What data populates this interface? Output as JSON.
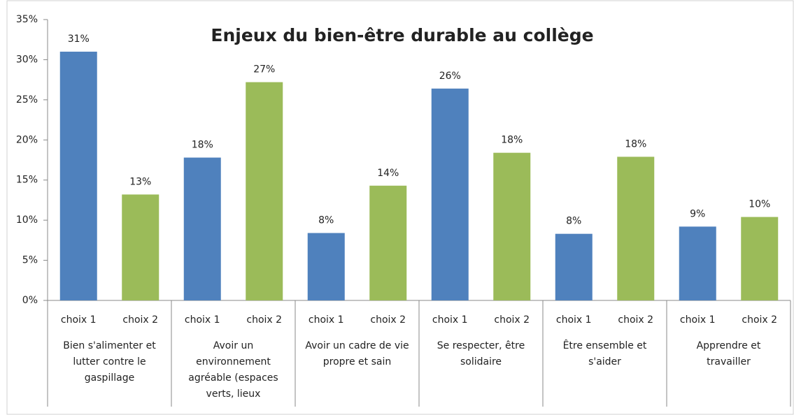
{
  "chart_data": {
    "type": "bar",
    "title": "Enjeux du bien-être durable au collège",
    "categories": [
      "Bien s'alimenter et lutter contre le gaspillage",
      "Avoir un environnement agréable (espaces verts, lieux",
      "Avoir un cadre de vie propre et sain",
      "Se respecter, être solidaire",
      "Être ensemble et s'aider",
      "Apprendre et travailler"
    ],
    "series": [
      {
        "name": "choix 1",
        "color": "#4f81bd",
        "values": [
          31,
          17.8,
          8.4,
          26.4,
          8.3,
          9.2
        ],
        "value_labels": [
          "31%",
          "18%",
          "8%",
          "26%",
          "8%",
          "9%"
        ]
      },
      {
        "name": "choix 2",
        "color": "#9bbb59",
        "values": [
          13.2,
          27.2,
          14.3,
          18.4,
          17.9,
          10.4
        ],
        "value_labels": [
          "13%",
          "27%",
          "14%",
          "18%",
          "18%",
          "10%"
        ]
      }
    ],
    "ylim": [
      0,
      35
    ],
    "yticks": [
      {
        "value": 0,
        "label": "0%"
      },
      {
        "value": 5,
        "label": "5%"
      },
      {
        "value": 10,
        "label": "10%"
      },
      {
        "value": 15,
        "label": "15%"
      },
      {
        "value": 20,
        "label": "20%"
      },
      {
        "value": 25,
        "label": "25%"
      },
      {
        "value": 30,
        "label": "30%"
      },
      {
        "value": 35,
        "label": "35%"
      }
    ]
  }
}
